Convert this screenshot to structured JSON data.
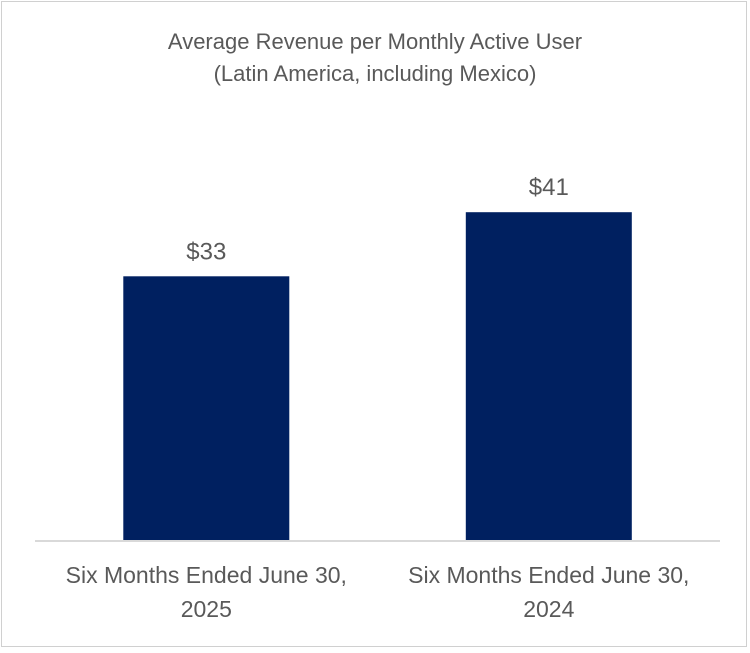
{
  "chart_data": {
    "type": "bar",
    "title": "Average Revenue per Monthly Active User",
    "subtitle": "(Latin America, including Mexico)",
    "categories": [
      [
        "Six Months Ended June 30,",
        "2025"
      ],
      [
        "Six Months Ended June 30,",
        "2024"
      ]
    ],
    "values": [
      33,
      41
    ],
    "data_labels": [
      "$33",
      "$41"
    ],
    "xlabel": "",
    "ylabel": "",
    "ylim": [
      0,
      50
    ],
    "grid": false,
    "legend": "none",
    "bar_color": "#002060",
    "axis_color": "#d9d9d9",
    "text_color": "#595959"
  }
}
